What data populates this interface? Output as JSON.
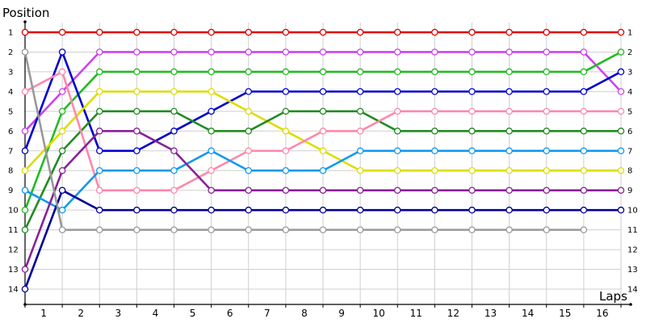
{
  "chart_data": {
    "type": "line",
    "title": "",
    "ylabel": "Position",
    "xlabel": "Laps",
    "x": [
      0,
      1,
      2,
      3,
      4,
      5,
      6,
      7,
      8,
      9,
      10,
      11,
      12,
      13,
      14,
      15,
      16
    ],
    "x_tick_labels": [
      "1",
      "2",
      "3",
      "4",
      "5",
      "6",
      "7",
      "8",
      "9",
      "10",
      "11",
      "12",
      "13",
      "14",
      "15",
      "16"
    ],
    "ylim": [
      1,
      14
    ],
    "y_inverted": true,
    "y_tick_labels": [
      "1",
      "2",
      "3",
      "4",
      "5",
      "6",
      "7",
      "8",
      "9",
      "10",
      "11",
      "12",
      "13",
      "14"
    ],
    "right_tick_labels": [
      "1",
      "2",
      "3",
      "4",
      "5",
      "6",
      "7",
      "8",
      "9",
      "10",
      "11",
      "12",
      "13",
      "14"
    ],
    "grid": true,
    "series": [
      {
        "color": "#dd0000",
        "values": [
          1,
          1,
          1,
          1,
          1,
          1,
          1,
          1,
          1,
          1,
          1,
          1,
          1,
          1,
          1,
          1,
          1
        ]
      },
      {
        "color": "#cc44ee",
        "values": [
          6,
          4,
          2,
          2,
          2,
          2,
          2,
          2,
          2,
          2,
          2,
          2,
          2,
          2,
          2,
          2,
          4
        ]
      },
      {
        "color": "#22bb22",
        "values": [
          10,
          5,
          3,
          3,
          3,
          3,
          3,
          3,
          3,
          3,
          3,
          3,
          3,
          3,
          3,
          3,
          2
        ]
      },
      {
        "color": "#0000cc",
        "values": [
          7,
          2,
          7,
          7,
          6,
          5,
          4,
          4,
          4,
          4,
          4,
          4,
          4,
          4,
          4,
          4,
          3
        ]
      },
      {
        "color": "#dddd00",
        "values": [
          8,
          6,
          4,
          4,
          4,
          4,
          5,
          6,
          7,
          8,
          8,
          8,
          8,
          8,
          8,
          8,
          8
        ]
      },
      {
        "color": "#228b22",
        "values": [
          11,
          7,
          5,
          5,
          5,
          6,
          6,
          5,
          5,
          5,
          6,
          6,
          6,
          6,
          6,
          6,
          6
        ]
      },
      {
        "color": "#ff88aa",
        "values": [
          4,
          3,
          9,
          9,
          9,
          8,
          7,
          7,
          6,
          6,
          5,
          5,
          5,
          5,
          5,
          5,
          5
        ]
      },
      {
        "color": "#1199ee",
        "values": [
          9,
          10,
          8,
          8,
          8,
          7,
          8,
          8,
          8,
          7,
          7,
          7,
          7,
          7,
          7,
          7,
          7
        ]
      },
      {
        "color": "#882299",
        "values": [
          13,
          8,
          6,
          6,
          7,
          9,
          9,
          9,
          9,
          9,
          9,
          9,
          9,
          9,
          9,
          9,
          9
        ]
      },
      {
        "color": "#000099",
        "values": [
          14,
          9,
          10,
          10,
          10,
          10,
          10,
          10,
          10,
          10,
          10,
          10,
          10,
          10,
          10,
          10,
          10
        ]
      },
      {
        "color": "#999999",
        "values": [
          2,
          11,
          11,
          11,
          11,
          11,
          11,
          11,
          11,
          11,
          11,
          11,
          11,
          11,
          11,
          11,
          null
        ]
      }
    ]
  }
}
